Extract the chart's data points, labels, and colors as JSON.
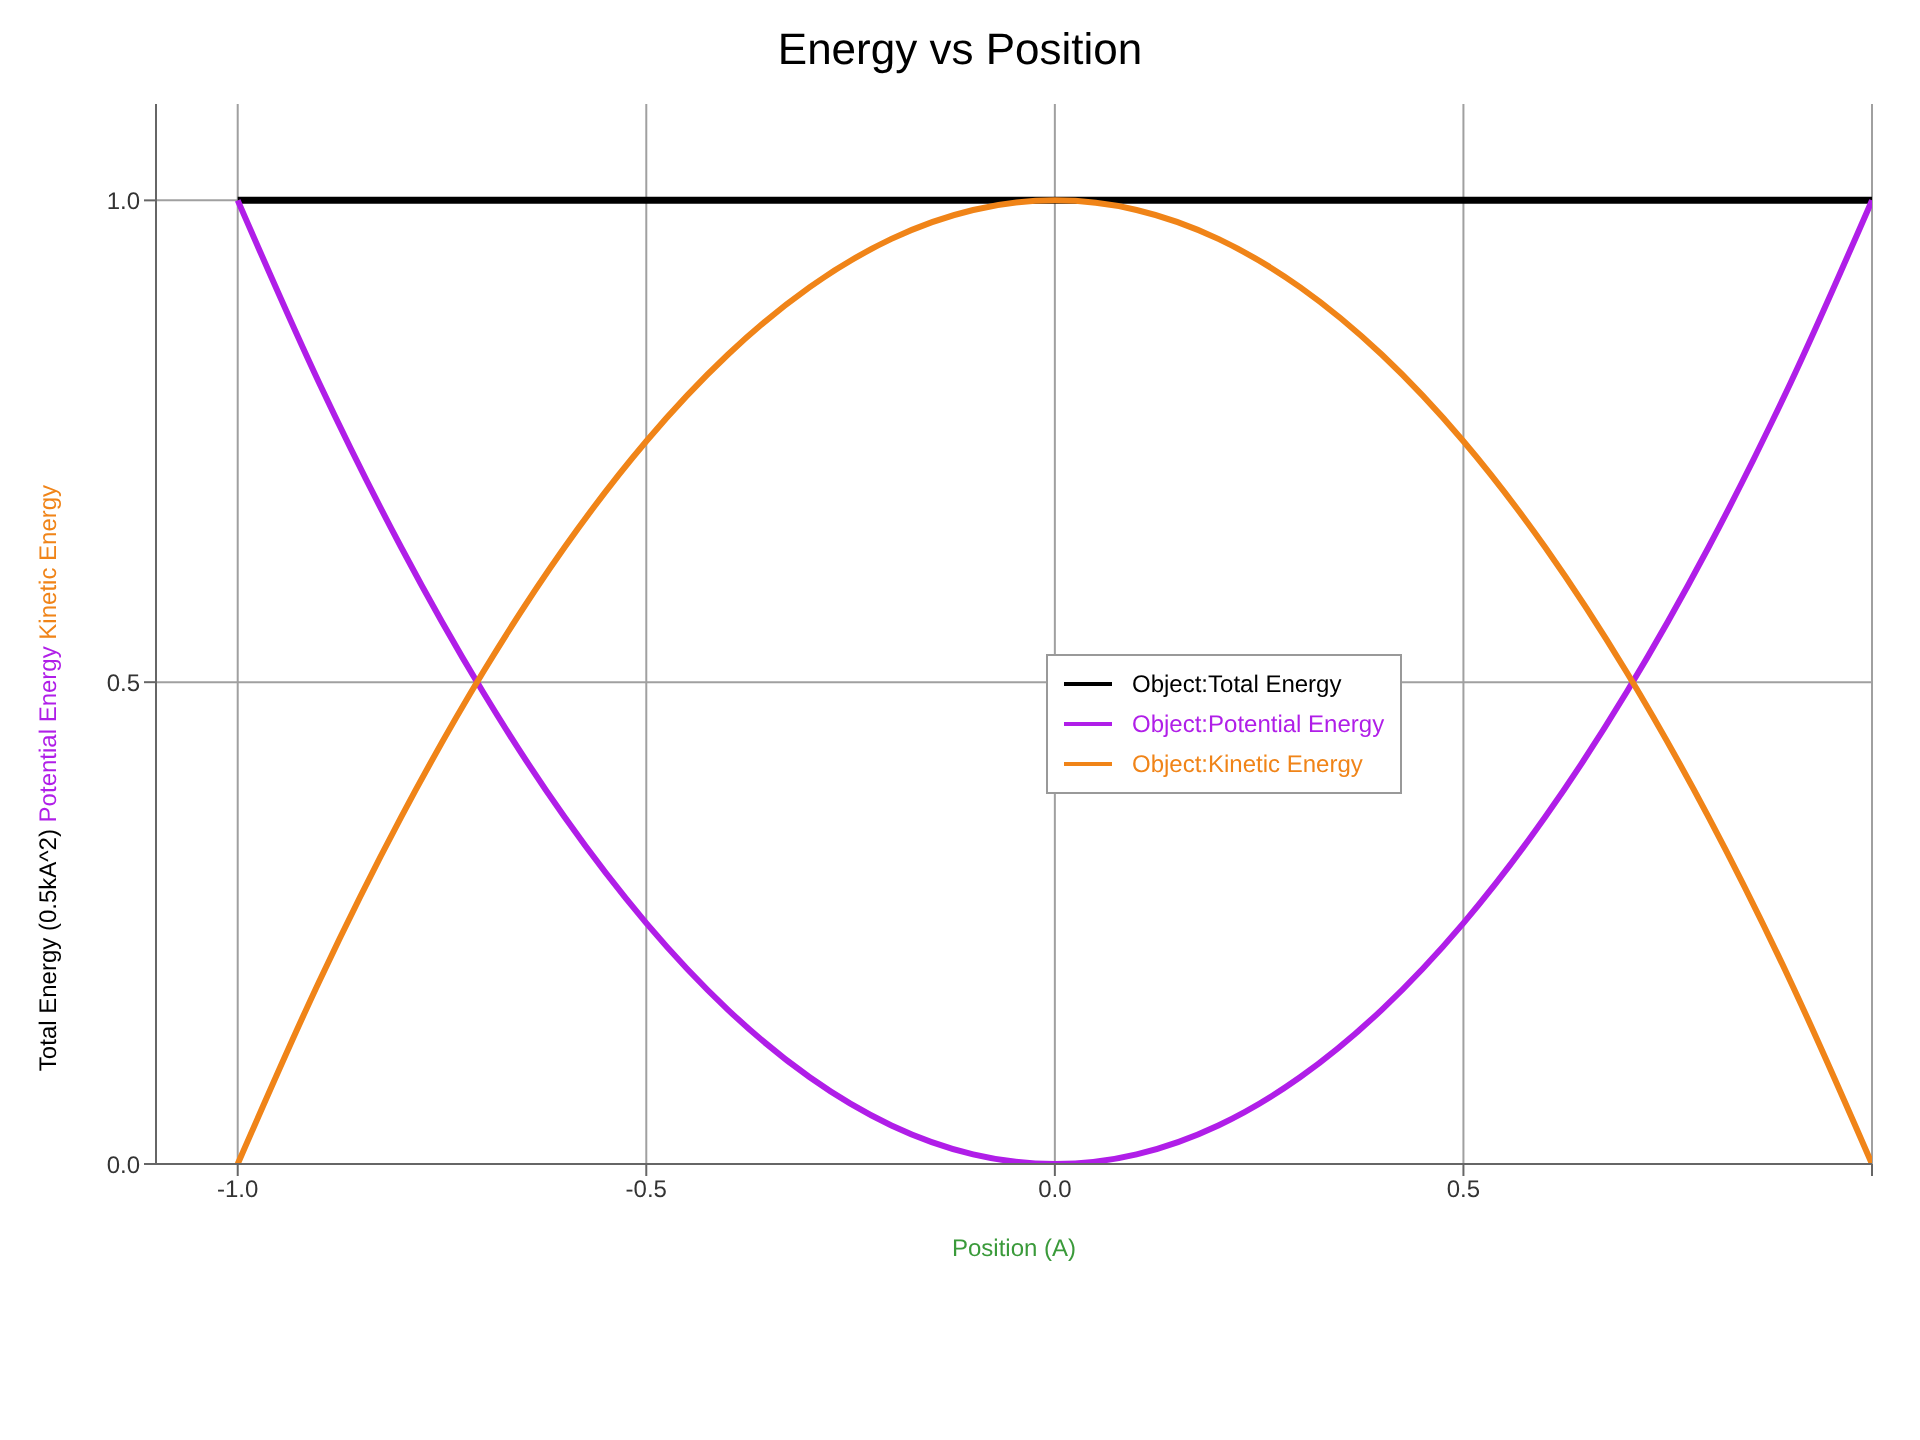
{
  "chart_data": {
    "type": "line",
    "title": "Energy vs Position",
    "xlabel": "Position (A)",
    "ylabel": "Total Energy (0.5kA^2)   Potential Energy   Kinetic Energy",
    "x": [
      -1,
      -0.9,
      -0.8,
      -0.7,
      -0.6,
      -0.5,
      -0.4,
      -0.3,
      -0.2,
      -0.1,
      0,
      0.1,
      0.2,
      0.3,
      0.4,
      0.5,
      0.6,
      0.7,
      0.8,
      0.9,
      1
    ],
    "series": [
      {
        "name": "Object:Total Energy",
        "color": "#000000",
        "values": [
          1,
          1,
          1,
          1,
          1,
          1,
          1,
          1,
          1,
          1,
          1,
          1,
          1,
          1,
          1,
          1,
          1,
          1,
          1,
          1,
          1
        ]
      },
      {
        "name": "Object:Potential Energy",
        "color": "#b01ee8",
        "values": [
          1,
          0.81,
          0.64,
          0.49,
          0.36,
          0.25,
          0.16,
          0.09,
          0.04,
          0.01,
          0,
          0.01,
          0.04,
          0.09,
          0.16,
          0.25,
          0.36,
          0.49,
          0.64,
          0.81,
          1
        ]
      },
      {
        "name": "Object:Kinetic Energy",
        "color": "#f08418",
        "values": [
          0,
          0.19,
          0.36,
          0.51,
          0.64,
          0.75,
          0.84,
          0.91,
          0.96,
          0.99,
          1,
          0.99,
          0.96,
          0.91,
          0.84,
          0.75,
          0.64,
          0.51,
          0.36,
          0.19,
          0
        ]
      }
    ],
    "xlim": [
      -1.1,
      1
    ],
    "xticks": [
      {
        "value": -1,
        "label": "-1.0"
      },
      {
        "value": -0.5,
        "label": "-0.5"
      },
      {
        "value": 0,
        "label": "0.0"
      },
      {
        "value": 0.5,
        "label": "0.5"
      },
      {
        "value": 1,
        "label": null
      }
    ],
    "ylim": [
      0,
      1.1
    ],
    "yticks": [
      {
        "value": 0,
        "label": "0.0"
      },
      {
        "value": 0.5,
        "label": "0.5"
      },
      {
        "value": 1,
        "label": "1.0"
      }
    ],
    "grid": true,
    "legend": "center",
    "marker": "none",
    "line_style": "solid"
  }
}
